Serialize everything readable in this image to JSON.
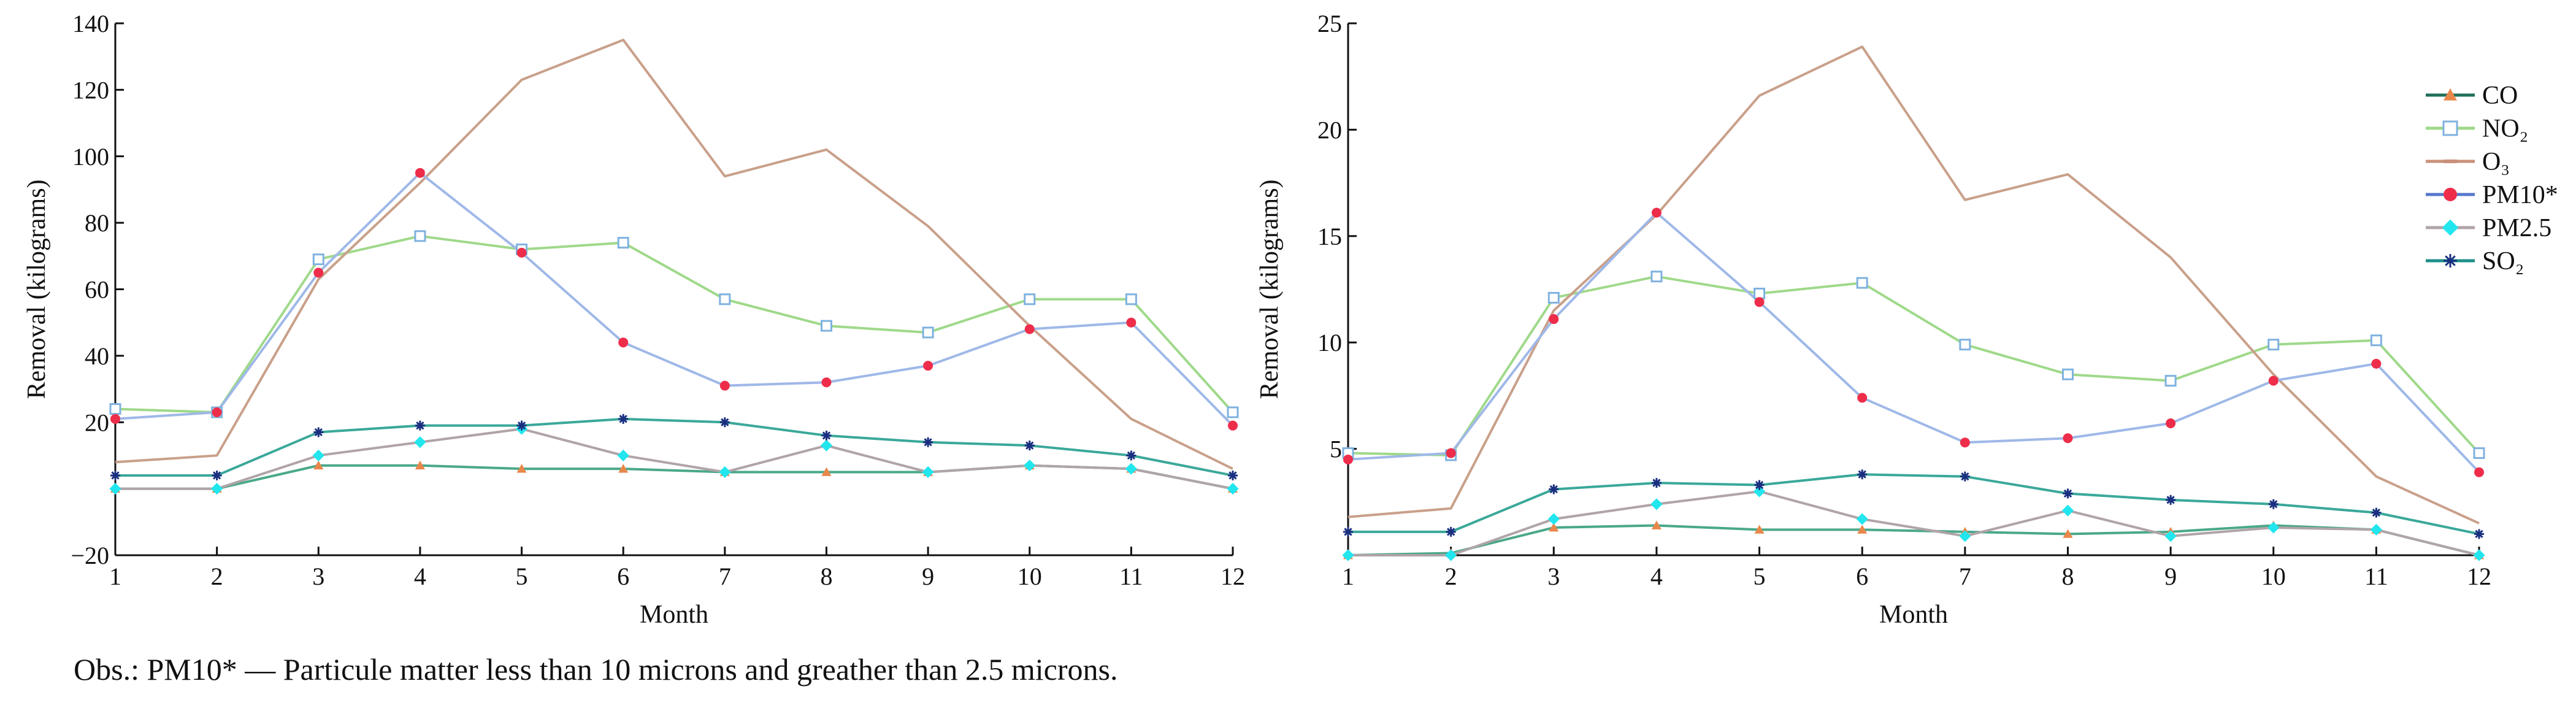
{
  "note": "Obs.: PM10* — Particule matter less than 10 microns and greather than 2.5 microns.",
  "chart_data": [
    {
      "type": "line",
      "xlabel": "Month",
      "ylabel": "Removal (kilograms)",
      "x": [
        1,
        2,
        3,
        4,
        5,
        6,
        7,
        8,
        9,
        10,
        11,
        12
      ],
      "xlim": [
        1,
        12
      ],
      "ylim": [
        -20,
        140
      ],
      "yticks": [
        -20,
        20,
        40,
        60,
        80,
        100,
        120,
        140
      ],
      "grid": false,
      "series": [
        {
          "name": "CO",
          "color": "#e8874a",
          "marker": "triangle",
          "line_color": "#4aa88a",
          "values": [
            0,
            0,
            7,
            7,
            6,
            6,
            5,
            5,
            5,
            7,
            6,
            0
          ]
        },
        {
          "name": "NO2",
          "color": "#7fb2e0",
          "marker": "square",
          "line_color": "#9fd98a",
          "values": [
            24,
            23,
            69,
            76,
            72,
            74,
            57,
            49,
            47,
            57,
            57,
            23
          ]
        },
        {
          "name": "O3",
          "color": "#c9907a",
          "marker": "none",
          "line_color": "#c9a08a",
          "values": [
            8,
            10,
            63,
            92,
            123,
            135,
            94,
            102,
            79,
            49,
            21,
            6
          ]
        },
        {
          "name": "PM10*",
          "color": "#ee2d4a",
          "marker": "circle",
          "line_color": "#9fb8e8",
          "values": [
            21,
            23,
            65,
            95,
            71,
            44,
            31,
            32,
            37,
            48,
            50,
            19
          ]
        },
        {
          "name": "PM2.5",
          "color": "#22e6ee",
          "marker": "diamond",
          "line_color": "#b0a4a8",
          "values": [
            0,
            0,
            10,
            14,
            18,
            10,
            5,
            13,
            5,
            7,
            6,
            0
          ]
        },
        {
          "name": "SO2",
          "color": "#1a2f80",
          "marker": "star",
          "line_color": "#3aa89a",
          "values": [
            4,
            4,
            17,
            19,
            19,
            21,
            20,
            16,
            14,
            13,
            10,
            4
          ]
        }
      ]
    },
    {
      "type": "line",
      "xlabel": "Month",
      "ylabel": "Removal (kilograms)",
      "x": [
        1,
        2,
        3,
        4,
        5,
        6,
        7,
        8,
        9,
        10,
        11,
        12
      ],
      "xlim": [
        1,
        12
      ],
      "ylim": [
        0,
        25
      ],
      "yticks": [
        5,
        10,
        15,
        20,
        25
      ],
      "grid": false,
      "series": [
        {
          "name": "CO",
          "color": "#e8874a",
          "marker": "triangle",
          "line_color": "#4aa88a",
          "values": [
            0,
            0.1,
            1.3,
            1.4,
            1.2,
            1.2,
            1.1,
            1.0,
            1.1,
            1.4,
            1.2,
            0
          ]
        },
        {
          "name": "NO2",
          "color": "#7fb2e0",
          "marker": "square",
          "line_color": "#9fd98a",
          "values": [
            4.8,
            4.7,
            12.1,
            13.1,
            12.3,
            12.8,
            9.9,
            8.5,
            8.2,
            9.9,
            10.1,
            4.8
          ]
        },
        {
          "name": "O3",
          "color": "#c9907a",
          "marker": "none",
          "line_color": "#c9a08a",
          "values": [
            1.8,
            2.2,
            11.5,
            16.0,
            21.6,
            23.9,
            16.7,
            17.9,
            14.0,
            8.5,
            3.7,
            1.5
          ]
        },
        {
          "name": "PM10*",
          "color": "#ee2d4a",
          "marker": "circle",
          "line_color": "#9fb8e8",
          "values": [
            4.5,
            4.8,
            11.1,
            16.1,
            11.9,
            7.4,
            5.3,
            5.5,
            6.2,
            8.2,
            9.0,
            3.9
          ]
        },
        {
          "name": "PM2.5",
          "color": "#22e6ee",
          "marker": "diamond",
          "line_color": "#b0a4a8",
          "values": [
            0,
            0,
            1.7,
            2.4,
            3.0,
            1.7,
            0.9,
            2.1,
            0.9,
            1.3,
            1.2,
            0
          ]
        },
        {
          "name": "SO2",
          "color": "#1a2f80",
          "marker": "star",
          "line_color": "#3aa89a",
          "values": [
            1.1,
            1.1,
            3.1,
            3.4,
            3.3,
            3.8,
            3.7,
            2.9,
            2.6,
            2.4,
            2.0,
            1.0
          ]
        }
      ]
    }
  ],
  "legend": {
    "placement": "right",
    "entries": [
      {
        "label": "CO",
        "color": "#e8874a",
        "marker": "triangle",
        "line_color": "#1f6f5a"
      },
      {
        "label": "NO₂",
        "color": "#7fb2e0",
        "marker": "square",
        "line_color": "#9fd98a"
      },
      {
        "label": "O₃",
        "color": "#c9907a",
        "marker": "dash",
        "line_color": "#c9907a"
      },
      {
        "label": "PM10*",
        "color": "#ee2d4a",
        "marker": "circle",
        "line_color": "#5577cc"
      },
      {
        "label": "PM2.5",
        "color": "#22e6ee",
        "marker": "diamond",
        "line_color": "#b0a4a8"
      },
      {
        "label": "SO₂",
        "color": "#1a2f80",
        "marker": "star",
        "line_color": "#1f8f8a"
      }
    ]
  }
}
